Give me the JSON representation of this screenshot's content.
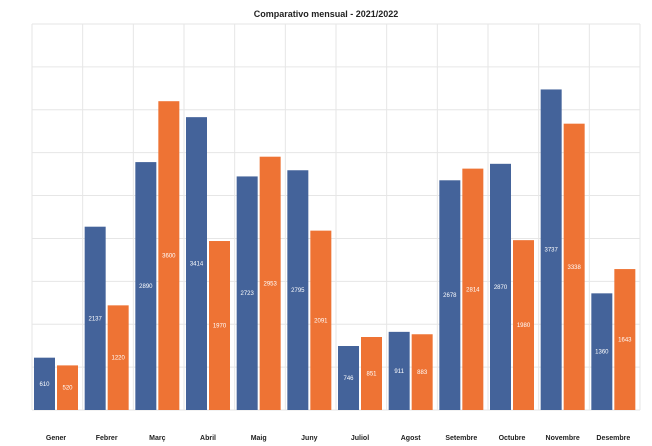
{
  "chart_data": {
    "type": "bar",
    "title": "Comparativo mensual - 2021/2022",
    "xlabel": "",
    "ylabel": "",
    "categories": [
      "Gener",
      "Febrer",
      "Març",
      "Abril",
      "Maig",
      "Juny",
      "Juliol",
      "Agost",
      "Setembre",
      "Octubre",
      "Novembre",
      "Desembre"
    ],
    "series": [
      {
        "color": "#44639a",
        "values": [
          610,
          2137,
          2890,
          3414,
          2723,
          2795,
          746,
          911,
          2678,
          2870,
          3737,
          1360
        ],
        "labels": [
          "610",
          "2137",
          "2890",
          "3414",
          "2723",
          "2795",
          "746",
          "911",
          "2678",
          "2870",
          "3737",
          "1360"
        ]
      },
      {
        "color": "#ee7334",
        "values": [
          520,
          1220,
          3600,
          1970,
          2953,
          2091,
          851,
          883,
          2814,
          1980,
          3338,
          1643
        ],
        "labels": [
          "520",
          "1220",
          "3600",
          "1970",
          "2953",
          "2091",
          "851",
          "883",
          "2814",
          "1980",
          "3338",
          "1643"
        ]
      }
    ],
    "ylim": [
      0,
      4500
    ],
    "grid": true,
    "legend": "none"
  }
}
